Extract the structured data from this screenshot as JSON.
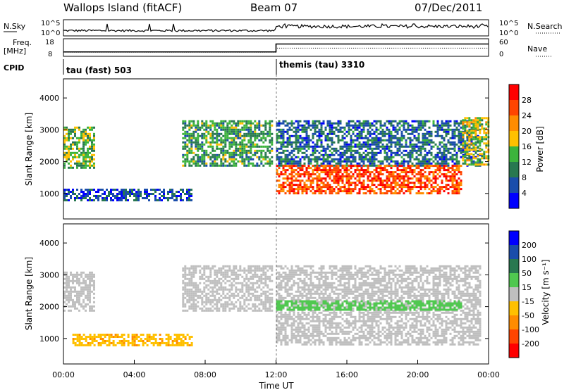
{
  "header": {
    "station": "Wallops Island (fitACF)",
    "beam": "Beam 07",
    "date": "07/Dec/2011"
  },
  "top_strip": {
    "nsky_label": "N.Sky",
    "nsearch_label": "N.Search",
    "nsky_ticks": [
      "10^5",
      "10^0"
    ],
    "freq_label": "Freq.",
    "freq_unit": "[MHz]",
    "freq_ticks": [
      "18",
      "8"
    ],
    "nave_label": "Nave",
    "nave_ticks": [
      "60",
      "0"
    ],
    "cpid_label": "CPID",
    "cpid_modes": [
      {
        "label": "tau (fast) 503",
        "start_hour": 0
      },
      {
        "label": "themis (tau) 3310",
        "start_hour": 12
      }
    ],
    "freq_mhz": [
      {
        "start_hour": 0,
        "end_hour": 12,
        "value": 10.5
      },
      {
        "start_hour": 12,
        "end_hour": 24,
        "value": 15
      }
    ],
    "nave": [
      {
        "start_hour": 0,
        "end_hour": 12,
        "value": 14
      },
      {
        "start_hour": 12,
        "end_hour": 24,
        "value": 28
      }
    ]
  },
  "chart_data": [
    {
      "type": "heatmap",
      "name": "power",
      "ylabel": "Slant Range [km]",
      "xlabel": "Time UT",
      "xlim_hours": [
        0,
        24
      ],
      "ylim": [
        200,
        4600
      ],
      "yticks": [
        1000,
        2000,
        3000,
        4000
      ],
      "xticks": [
        "00:00",
        "04:00",
        "08:00",
        "12:00",
        "16:00",
        "20:00",
        "00:00"
      ],
      "colorbar": {
        "label": "Power [dB]",
        "ticks": [
          "28",
          "24",
          "20",
          "16",
          "12",
          "8",
          "4"
        ],
        "colors": [
          "#ff0000",
          "#ff4500",
          "#ff8c00",
          "#ffc000",
          "#3cb43c",
          "#287850",
          "#1a4dab",
          "#0000ff"
        ]
      },
      "regions": [
        {
          "t0": 0.0,
          "t1": 1.7,
          "r0": 1800,
          "r1": 3100,
          "value": 16
        },
        {
          "t0": 0.0,
          "t1": 7.2,
          "r0": 800,
          "r1": 1150,
          "value": 8
        },
        {
          "t0": 6.7,
          "t1": 11.8,
          "r0": 1900,
          "r1": 3300,
          "value": 14
        },
        {
          "t0": 12.0,
          "t1": 23.5,
          "r0": 1900,
          "r1": 3300,
          "value": 10
        },
        {
          "t0": 12.0,
          "t1": 22.5,
          "r0": 1000,
          "r1": 1900,
          "value": 28
        },
        {
          "t0": 22.5,
          "t1": 24.0,
          "r0": 1900,
          "r1": 3400,
          "value": 18
        }
      ]
    },
    {
      "type": "heatmap",
      "name": "velocity",
      "ylabel": "Slant Range [km]",
      "xlabel": "Time UT",
      "xlim_hours": [
        0,
        24
      ],
      "ylim": [
        200,
        4600
      ],
      "yticks": [
        1000,
        2000,
        3000,
        4000
      ],
      "xticks": [
        "00:00",
        "04:00",
        "08:00",
        "12:00",
        "16:00",
        "20:00",
        "00:00"
      ],
      "colorbar": {
        "label": "Velocity [m s⁻¹]",
        "ticks": [
          "200",
          "100",
          "50",
          "15",
          "-15",
          "-50",
          "-100",
          "-200"
        ],
        "colors": [
          "#0000ff",
          "#1a4dab",
          "#287850",
          "#50c850",
          "#bfbfbf",
          "#ffc000",
          "#ff8c00",
          "#ff4500",
          "#ff0000"
        ]
      },
      "regions": [
        {
          "t0": 0.0,
          "t1": 1.7,
          "r0": 1900,
          "r1": 3100,
          "value": 0
        },
        {
          "t0": 0.5,
          "t1": 7.2,
          "r0": 800,
          "r1": 1150,
          "value": -40
        },
        {
          "t0": 6.7,
          "t1": 11.8,
          "r0": 1900,
          "r1": 3300,
          "value": 0
        },
        {
          "t0": 12.0,
          "t1": 23.5,
          "r0": 800,
          "r1": 3300,
          "value": 0
        },
        {
          "t0": 12.0,
          "t1": 22.5,
          "r0": 1900,
          "r1": 2200,
          "value": 30
        }
      ]
    }
  ]
}
